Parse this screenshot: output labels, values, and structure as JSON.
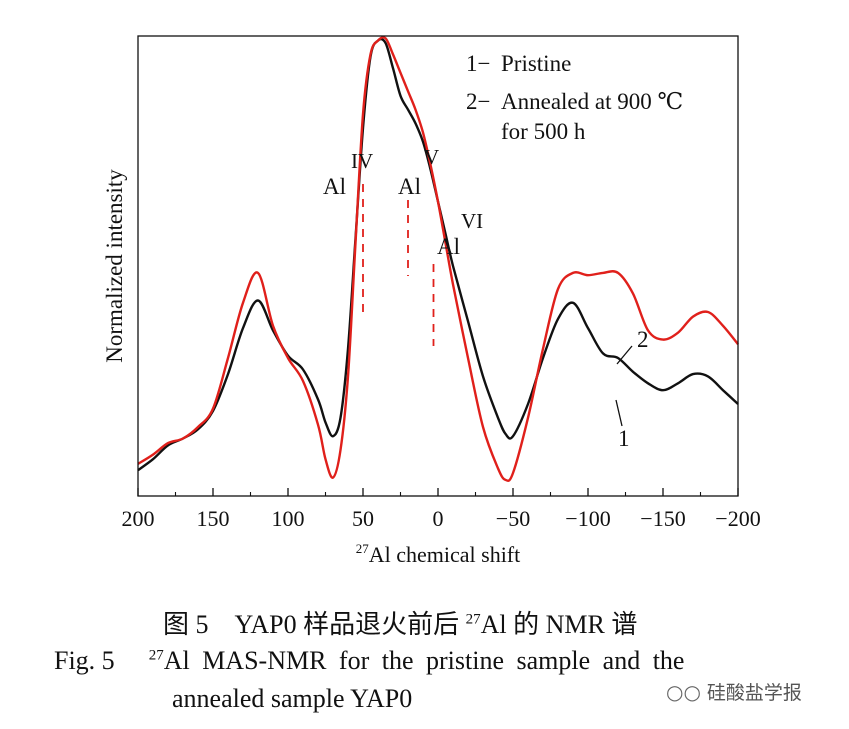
{
  "chart_data": {
    "type": "line",
    "xlabel_sup": "27",
    "xlabel": "Al chemical shift",
    "ylabel": "Normalized intensity",
    "xlim": [
      200,
      -200
    ],
    "ylim": [
      0,
      1
    ],
    "x_ticks": [
      200,
      150,
      100,
      50,
      0,
      -50,
      -100,
      -150,
      -200
    ],
    "x_tick_labels": [
      "200",
      "150",
      "100",
      "50",
      "0",
      "−50",
      "−100",
      "−150",
      "−200"
    ],
    "grid": false,
    "legend_position": "top-right",
    "legend": [
      {
        "key": "1−",
        "text": "Pristine"
      },
      {
        "key": "2−",
        "text": "Annealed at 900 ℃",
        "text2": "for 500 h"
      }
    ],
    "series": [
      {
        "name": "1",
        "color": "#111111",
        "x": [
          200,
          190,
          180,
          170,
          160,
          150,
          140,
          130,
          120,
          110,
          100,
          90,
          80,
          75,
          70,
          65,
          60,
          55,
          50,
          45,
          40,
          35,
          30,
          25,
          20,
          15,
          10,
          5,
          0,
          -5,
          -10,
          -20,
          -30,
          -40,
          -45,
          -50,
          -60,
          -70,
          -80,
          -90,
          -100,
          -110,
          -120,
          -130,
          -140,
          -150,
          -160,
          -170,
          -180,
          -190,
          -200
        ],
        "y": [
          0.056,
          0.08,
          0.11,
          0.125,
          0.145,
          0.185,
          0.265,
          0.365,
          0.425,
          0.36,
          0.305,
          0.275,
          0.21,
          0.16,
          0.13,
          0.17,
          0.32,
          0.56,
          0.8,
          0.955,
          0.99,
          0.985,
          0.93,
          0.87,
          0.84,
          0.81,
          0.77,
          0.71,
          0.64,
          0.57,
          0.5,
          0.38,
          0.26,
          0.17,
          0.135,
          0.13,
          0.2,
          0.3,
          0.385,
          0.42,
          0.365,
          0.31,
          0.3,
          0.27,
          0.245,
          0.23,
          0.245,
          0.265,
          0.26,
          0.23,
          0.2
        ]
      },
      {
        "name": "2",
        "color": "#e0201b",
        "x": [
          200,
          190,
          180,
          170,
          160,
          150,
          140,
          130,
          120,
          110,
          100,
          90,
          80,
          75,
          70,
          65,
          60,
          55,
          50,
          45,
          40,
          35,
          30,
          25,
          20,
          15,
          10,
          5,
          0,
          -5,
          -10,
          -20,
          -30,
          -40,
          -45,
          -50,
          -60,
          -70,
          -80,
          -90,
          -100,
          -110,
          -120,
          -130,
          -140,
          -150,
          -160,
          -170,
          -180,
          -190,
          -200
        ],
        "y": [
          0.07,
          0.09,
          0.115,
          0.125,
          0.15,
          0.19,
          0.3,
          0.42,
          0.485,
          0.37,
          0.3,
          0.25,
          0.155,
          0.08,
          0.04,
          0.1,
          0.26,
          0.55,
          0.83,
          0.96,
          0.99,
          0.995,
          0.96,
          0.92,
          0.88,
          0.84,
          0.79,
          0.72,
          0.64,
          0.55,
          0.46,
          0.3,
          0.15,
          0.06,
          0.035,
          0.05,
          0.17,
          0.32,
          0.45,
          0.485,
          0.48,
          0.485,
          0.485,
          0.44,
          0.36,
          0.34,
          0.355,
          0.39,
          0.4,
          0.37,
          0.33
        ]
      }
    ],
    "series_labels": [
      {
        "text": "1",
        "x": -123,
        "y": 0.295
      },
      {
        "text": "2",
        "x": -120,
        "y": 0.485
      }
    ],
    "annotations": [
      {
        "text": "Al",
        "x": 50,
        "peak_x": 50,
        "peak_y": 0.6,
        "sup": "IV"
      },
      {
        "text": "Al",
        "x": 20,
        "peak_x": 20,
        "peak_y": 0.74,
        "sup": "V"
      },
      {
        "text": "Al",
        "x": 3,
        "peak_x": 3,
        "peak_y": 0.51,
        "sup": "VI"
      }
    ]
  },
  "caption": {
    "cn_prefix": "图 5　YAP0 样品退火前后 ",
    "cn_sup": "27",
    "cn_suffix": "Al 的 NMR 谱",
    "en_label": "Fig. 5",
    "en_sup": "27",
    "en_line1": "Al MAS-NMR for the pristine sample and the",
    "en_line2": "annealed sample YAP0"
  },
  "watermark": {
    "icon": "wechat-icon",
    "text": "硅酸盐学报"
  }
}
